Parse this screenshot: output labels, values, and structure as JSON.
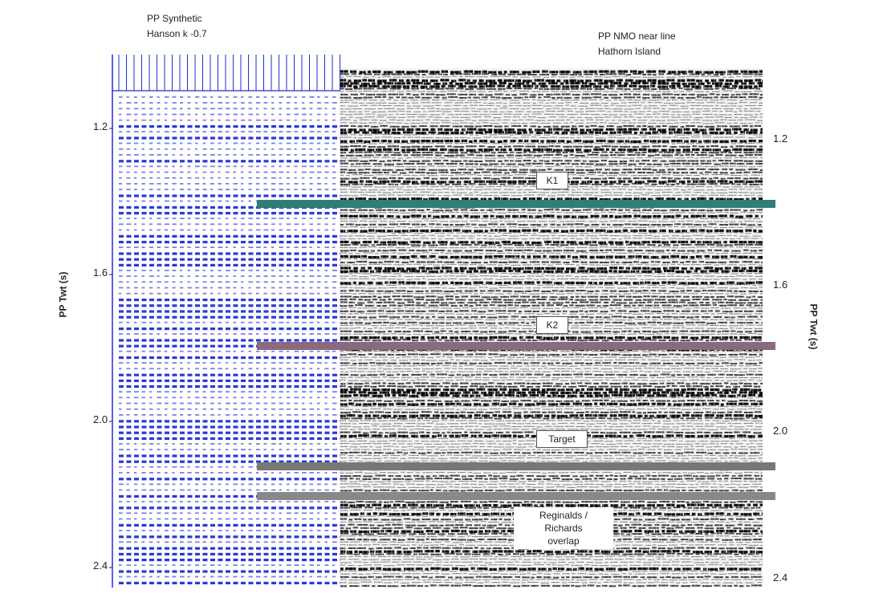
{
  "left_panel": {
    "title_line1": "PP Synthetic",
    "title_line2": "Hanson k  -0.7"
  },
  "right_panel": {
    "title_line1": "PP NMO near line",
    "title_line2": "Hathorn Island"
  },
  "axes": {
    "left_title": "PP Twt (s)",
    "right_title": "PP Twt (s)",
    "left_ticks": [
      "1.2",
      "1.6",
      "2.0",
      "2.4"
    ],
    "right_ticks": [
      "1.2",
      "1.6",
      "2.0",
      "2.4"
    ]
  },
  "horizons": [
    {
      "label": "K1",
      "color": "#2f7f76"
    },
    {
      "label": "K2",
      "color": "#8a6a7e"
    },
    {
      "label": "Target",
      "color": "#777777"
    },
    {
      "label": "",
      "color": "#888888"
    }
  ],
  "annotation": {
    "line1": "Reginalds  /",
    "line2": "Richards",
    "line3": "overlap"
  },
  "colors": {
    "synthetic": "#1f2fd6",
    "seismic": "#000000"
  }
}
